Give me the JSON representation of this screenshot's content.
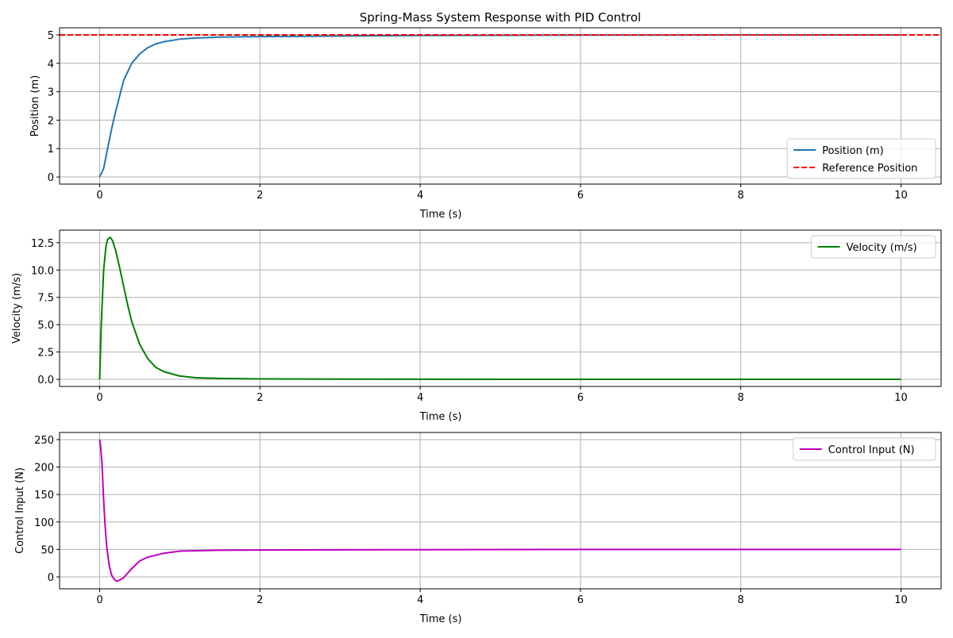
{
  "figure_title": "Spring-Mass System Response with PID Control",
  "chart_data": [
    {
      "type": "line",
      "title": "Spring-Mass System Response with PID Control",
      "xlabel": "Time (s)",
      "ylabel": "Position (m)",
      "xlim": [
        -0.5,
        10.5
      ],
      "ylim": [
        -0.25,
        5.25
      ],
      "xticks": [
        0,
        2,
        4,
        6,
        8,
        10
      ],
      "yticks": [
        0,
        1,
        2,
        3,
        4,
        5
      ],
      "grid": true,
      "legend_position": "lower-right",
      "series": [
        {
          "name": "Position (m)",
          "color": "#1f77b4",
          "style": "solid",
          "x": [
            0,
            0.05,
            0.1,
            0.15,
            0.2,
            0.3,
            0.4,
            0.5,
            0.6,
            0.7,
            0.8,
            1.0,
            1.2,
            1.5,
            2,
            3,
            4,
            6,
            8,
            10
          ],
          "y": [
            0,
            0.3,
            1.0,
            1.7,
            2.3,
            3.4,
            4.0,
            4.33,
            4.55,
            4.68,
            4.76,
            4.85,
            4.89,
            4.92,
            4.94,
            4.96,
            4.98,
            4.99,
            5.0,
            5.0
          ]
        },
        {
          "name": "Reference Position",
          "color": "#ff0000",
          "style": "dashed",
          "x": [
            -0.5,
            10.5
          ],
          "y": [
            5,
            5
          ]
        }
      ]
    },
    {
      "type": "line",
      "xlabel": "Time (s)",
      "ylabel": "Velocity (m/s)",
      "xlim": [
        -0.5,
        10.5
      ],
      "ylim": [
        -0.65,
        13.65
      ],
      "xticks": [
        0,
        2,
        4,
        6,
        8,
        10
      ],
      "yticks": [
        0.0,
        2.5,
        5.0,
        7.5,
        10.0,
        12.5
      ],
      "ytick_labels": [
        "0.0",
        "2.5",
        "5.0",
        "7.5",
        "10.0",
        "12.5"
      ],
      "grid": true,
      "legend_position": "upper-right",
      "series": [
        {
          "name": "Velocity (m/s)",
          "color": "#008000",
          "style": "solid",
          "x": [
            0,
            0.02,
            0.05,
            0.08,
            0.1,
            0.13,
            0.16,
            0.2,
            0.25,
            0.3,
            0.35,
            0.4,
            0.5,
            0.6,
            0.7,
            0.8,
            1.0,
            1.2,
            1.5,
            2,
            3,
            4,
            6,
            8,
            10
          ],
          "y": [
            0,
            5,
            10,
            12.2,
            12.8,
            13.0,
            12.7,
            11.8,
            10.2,
            8.5,
            6.8,
            5.3,
            3.2,
            1.9,
            1.1,
            0.7,
            0.3,
            0.15,
            0.08,
            0.04,
            0.02,
            0.01,
            0.0,
            0.0,
            0.0
          ]
        }
      ]
    },
    {
      "type": "line",
      "xlabel": "Time (s)",
      "ylabel": "Control Input (N)",
      "xlim": [
        -0.5,
        10.5
      ],
      "ylim": [
        -21.7,
        263
      ],
      "xticks": [
        0,
        2,
        4,
        6,
        8,
        10
      ],
      "yticks": [
        0,
        50,
        100,
        150,
        200,
        250
      ],
      "grid": true,
      "legend_position": "upper-right",
      "series": [
        {
          "name": "Control Input (N)",
          "color": "#bf00bf",
          "style": "solid",
          "x": [
            0,
            0.01,
            0.03,
            0.05,
            0.07,
            0.09,
            0.12,
            0.15,
            0.19,
            0.22,
            0.26,
            0.3,
            0.4,
            0.5,
            0.6,
            0.8,
            1.0,
            1.5,
            2,
            4,
            6,
            8,
            10
          ],
          "y": [
            250,
            240,
            205,
            140,
            90,
            53,
            20,
            3,
            -6,
            -8,
            -5,
            -1.5,
            15,
            29,
            36,
            43,
            47,
            48.5,
            49,
            49.5,
            50,
            50,
            50
          ]
        }
      ]
    }
  ]
}
